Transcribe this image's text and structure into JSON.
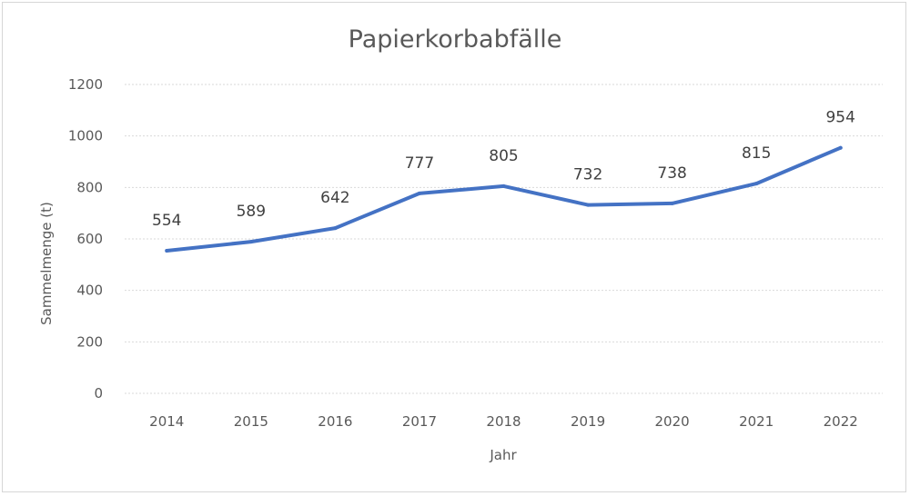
{
  "chart_data": {
    "type": "line",
    "title": "Papierkorbabfälle",
    "xlabel": "Jahr",
    "ylabel": "Sammelmenge  (t)",
    "categories": [
      "2014",
      "2015",
      "2016",
      "2017",
      "2018",
      "2019",
      "2020",
      "2021",
      "2022"
    ],
    "series": [
      {
        "values": [
          554,
          589,
          642,
          777,
          805,
          732,
          738,
          815,
          954
        ]
      }
    ],
    "data_labels": [
      "554",
      "589",
      "642",
      "777",
      "805",
      "732",
      "738",
      "815",
      "954"
    ],
    "ylim": [
      0,
      1200
    ],
    "yticks": [
      "0",
      "200",
      "400",
      "600",
      "800",
      "1000",
      "1200"
    ],
    "grid": true,
    "legend": "none",
    "colors": {
      "series": "#4472c4"
    }
  }
}
